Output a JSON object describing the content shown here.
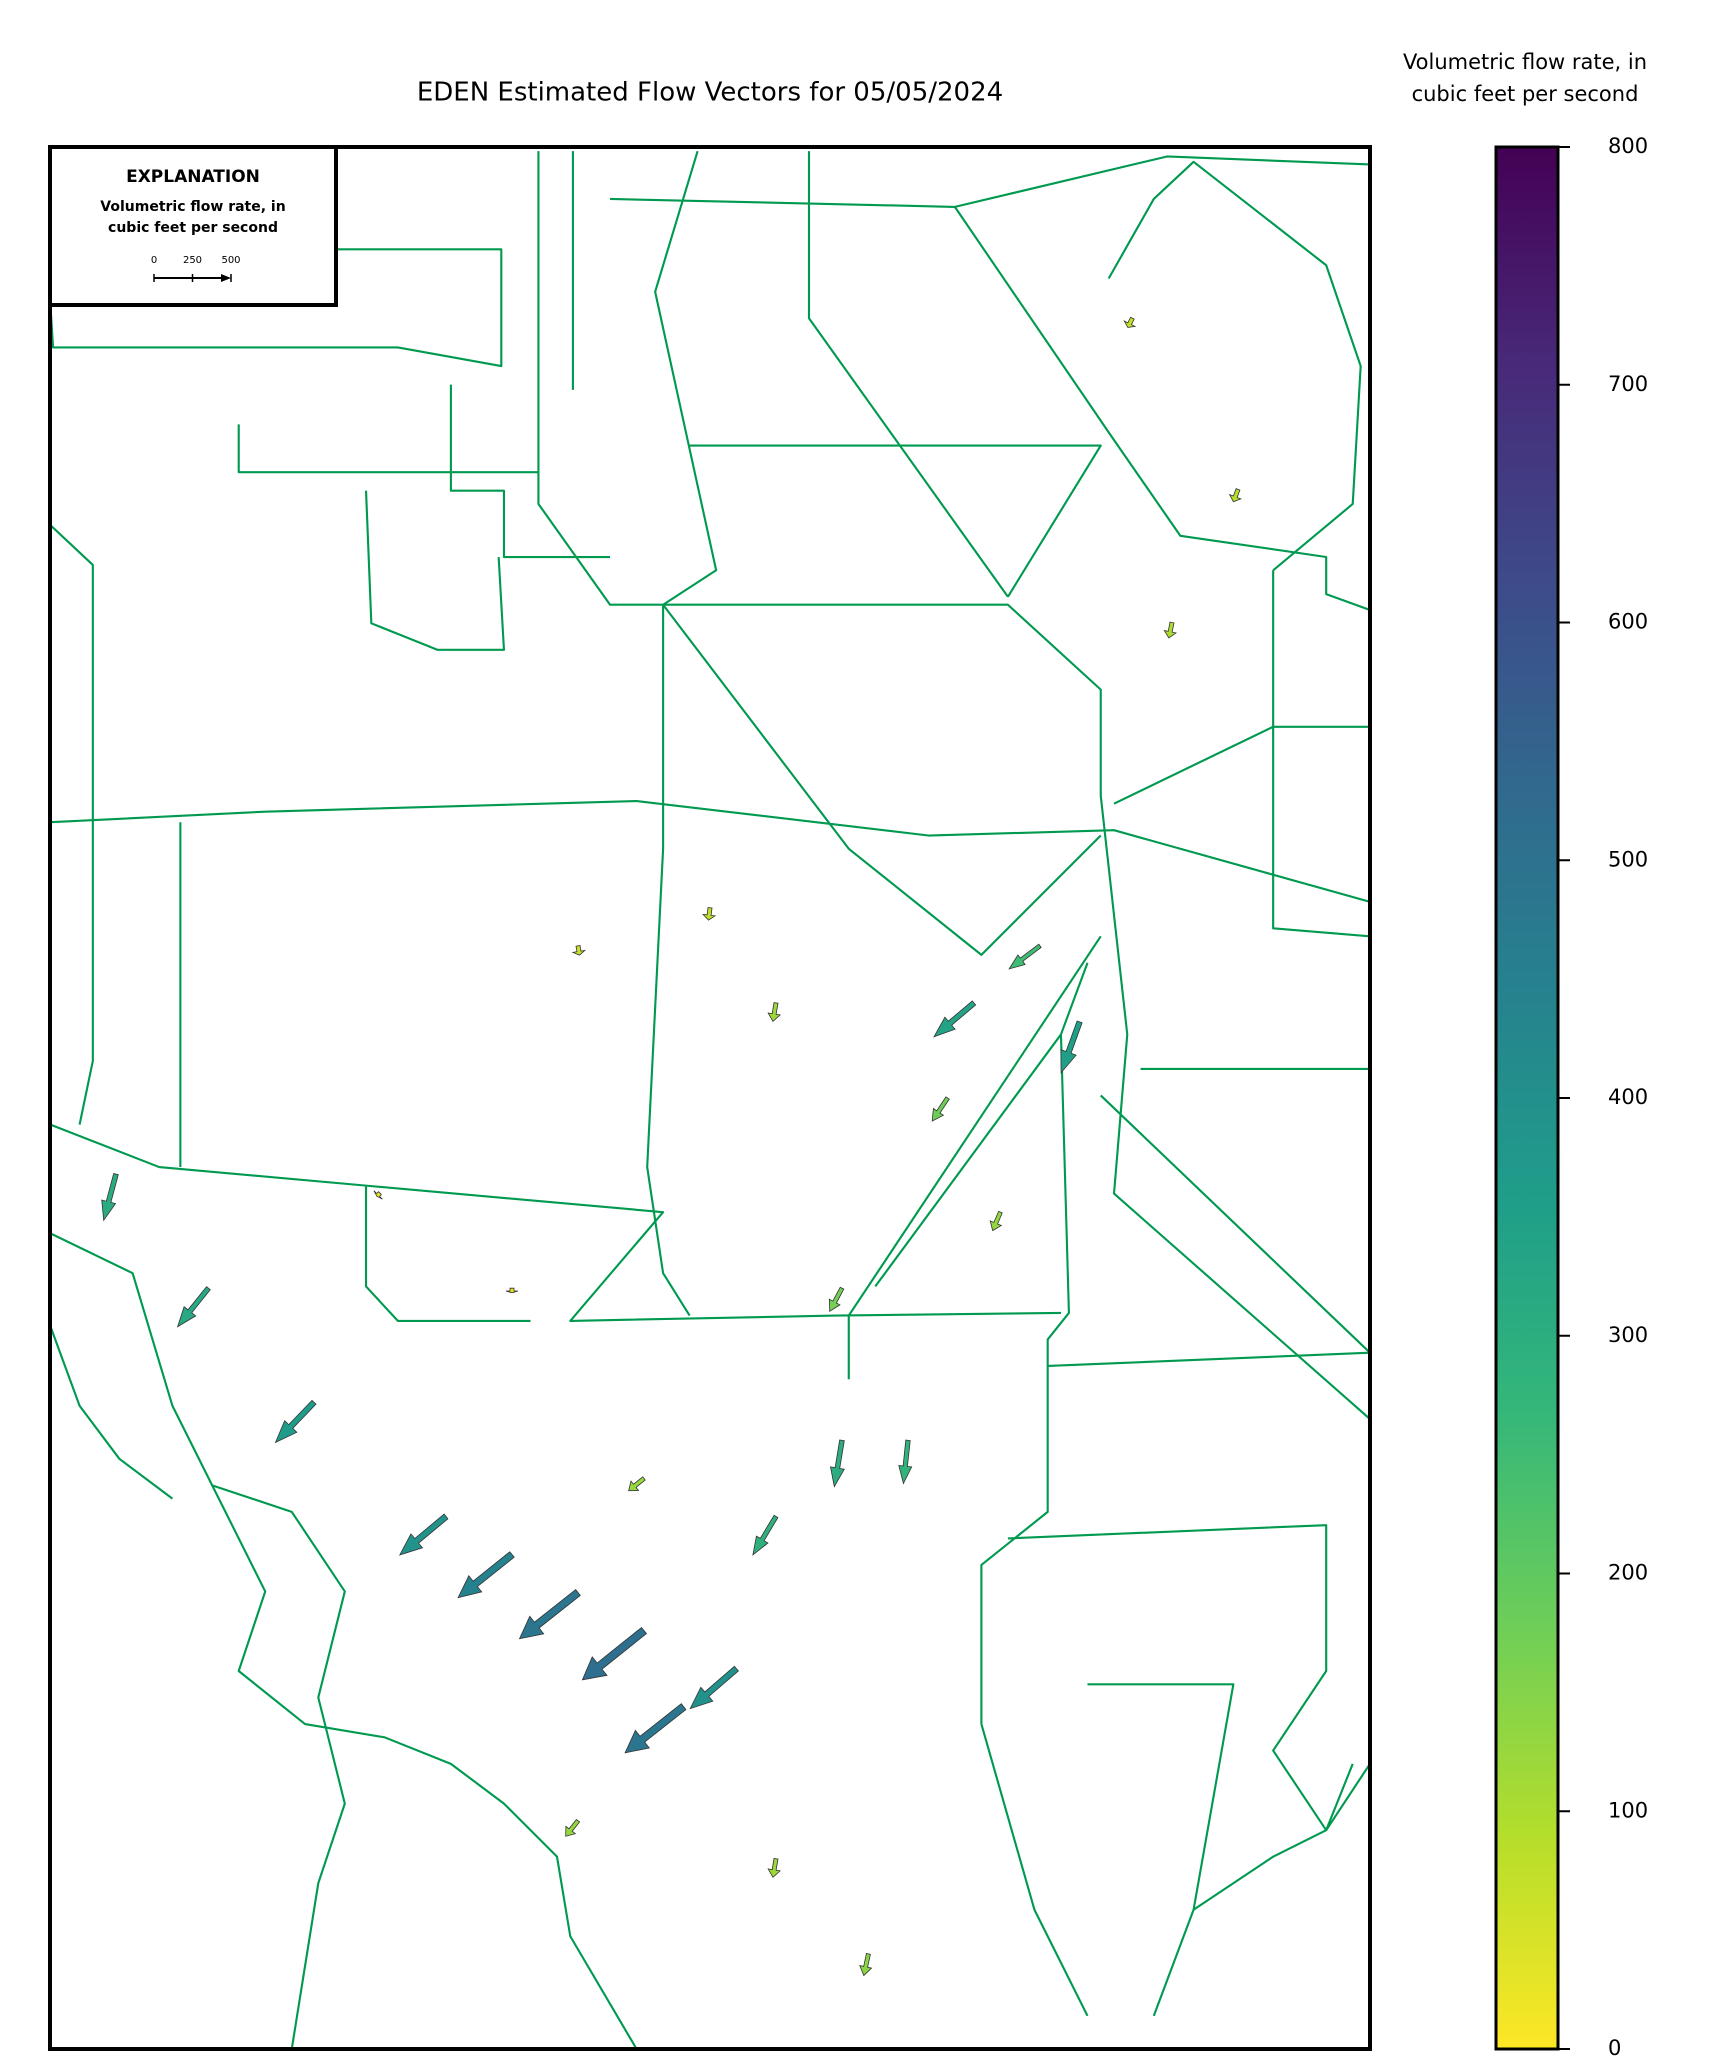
{
  "chart_data": {
    "type": "vector-map",
    "title": "EDEN Estimated Flow Vectors for 05/05/2024",
    "colorbar_label": [
      "Volumetric flow rate, in",
      "cubic feet per second"
    ],
    "clim": [
      0,
      800
    ],
    "cticks": [
      0,
      100,
      200,
      300,
      400,
      500,
      600,
      700,
      800
    ],
    "colormap": [
      "#fde725",
      "#b5de2b",
      "#6ece58",
      "#35b779",
      "#1f9e89",
      "#26828e",
      "#31688e",
      "#3e4989",
      "#482878",
      "#440154"
    ],
    "explanation": {
      "title": "EXPLANATION",
      "label": [
        "Volumetric flow rate, in",
        "cubic feet per second"
      ],
      "key_ticks": [
        0,
        250,
        500
      ]
    },
    "vectors": [
      {
        "x": 0.3,
        "y": 0.72,
        "u": -300,
        "v": -250
      },
      {
        "x": 0.35,
        "y": 0.74,
        "u": -350,
        "v": -280
      },
      {
        "x": 0.4,
        "y": 0.76,
        "u": -380,
        "v": -300
      },
      {
        "x": 0.45,
        "y": 0.78,
        "u": -400,
        "v": -320
      },
      {
        "x": 0.48,
        "y": 0.82,
        "u": -380,
        "v": -300
      },
      {
        "x": 0.52,
        "y": 0.8,
        "u": -300,
        "v": -260
      },
      {
        "x": 0.55,
        "y": 0.72,
        "u": -150,
        "v": -250
      },
      {
        "x": 0.6,
        "y": 0.68,
        "u": -50,
        "v": -300
      },
      {
        "x": 0.65,
        "y": 0.68,
        "u": -30,
        "v": -280
      },
      {
        "x": 0.2,
        "y": 0.66,
        "u": -250,
        "v": -260
      },
      {
        "x": 0.12,
        "y": 0.6,
        "u": -200,
        "v": -250
      },
      {
        "x": 0.05,
        "y": 0.54,
        "u": -80,
        "v": -300
      },
      {
        "x": 0.7,
        "y": 0.45,
        "u": -260,
        "v": -220
      },
      {
        "x": 0.75,
        "y": 0.42,
        "u": -200,
        "v": -150
      },
      {
        "x": 0.78,
        "y": 0.46,
        "u": -120,
        "v": -330
      },
      {
        "x": 0.55,
        "y": 0.45,
        "u": -20,
        "v": -120
      },
      {
        "x": 0.5,
        "y": 0.4,
        "u": -10,
        "v": -80
      },
      {
        "x": 0.4,
        "y": 0.42,
        "u": 10,
        "v": -60
      },
      {
        "x": 0.85,
        "y": 0.25,
        "u": -20,
        "v": -100
      },
      {
        "x": 0.9,
        "y": 0.18,
        "u": -30,
        "v": -80
      },
      {
        "x": 0.82,
        "y": 0.09,
        "u": -30,
        "v": -60
      },
      {
        "x": 0.6,
        "y": 0.6,
        "u": -80,
        "v": -150
      },
      {
        "x": 0.72,
        "y": 0.56,
        "u": -50,
        "v": -120
      },
      {
        "x": 0.45,
        "y": 0.7,
        "u": -100,
        "v": -80
      },
      {
        "x": 0.55,
        "y": 0.9,
        "u": -20,
        "v": -120
      },
      {
        "x": 0.62,
        "y": 0.95,
        "u": -30,
        "v": -140
      },
      {
        "x": 0.4,
        "y": 0.88,
        "u": -80,
        "v": -100
      },
      {
        "x": 0.68,
        "y": 0.5,
        "u": -100,
        "v": -150
      },
      {
        "x": 0.35,
        "y": 0.6,
        "u": 0,
        "v": -30
      },
      {
        "x": 0.25,
        "y": 0.55,
        "u": -20,
        "v": -20
      }
    ]
  }
}
